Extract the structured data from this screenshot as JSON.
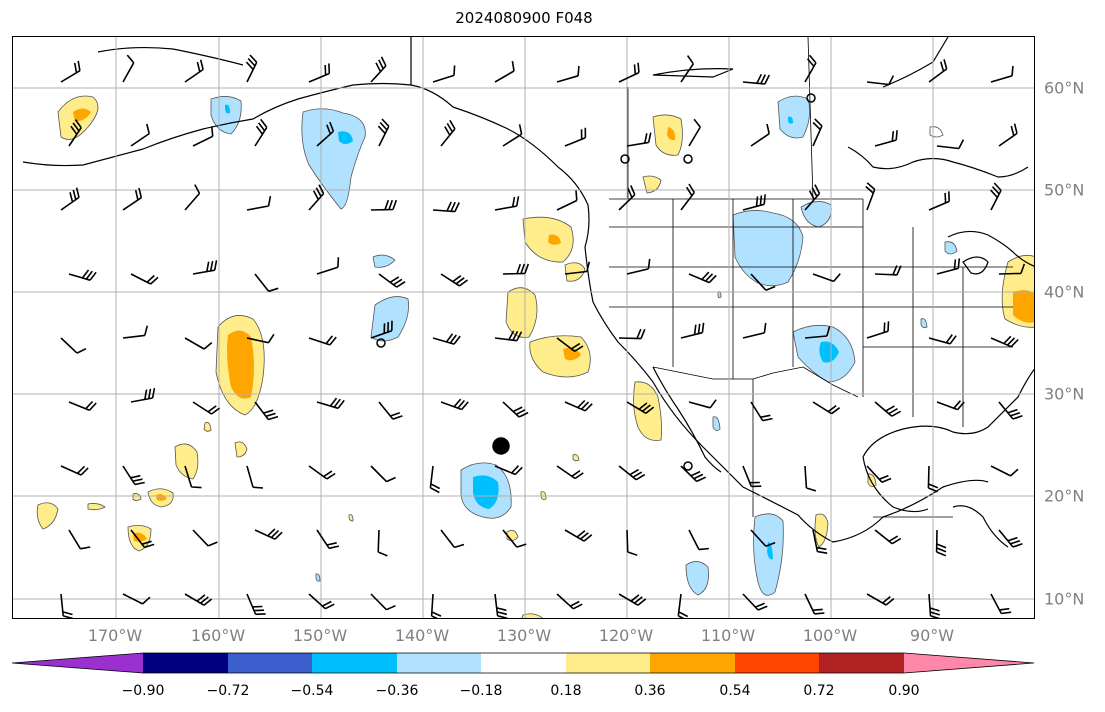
{
  "title": "2024080900 F048",
  "lon_labels": [
    "170°W",
    "160°W",
    "150°W",
    "140°W",
    "130°W",
    "120°W",
    "110°W",
    "100°W",
    "90°W"
  ],
  "lat_labels": [
    "60°N",
    "50°N",
    "40°N",
    "30°N",
    "20°N",
    "10°N"
  ],
  "colorbar": {
    "ticks": [
      "−0.90",
      "−0.72",
      "−0.54",
      "−0.36",
      "−0.18",
      "0.18",
      "0.36",
      "0.54",
      "0.72",
      "0.90"
    ],
    "colors": [
      "#9b30d0",
      "#000080",
      "#3a5fcd",
      "#00bfff",
      "#b0e2ff",
      "#ffffff",
      "#ffec8b",
      "#ffa500",
      "#ff4500",
      "#b22222",
      "#ff88aa"
    ]
  },
  "colors": {
    "coast": "#000000",
    "grid": "#b0b0b0",
    "label": "#808080"
  }
}
